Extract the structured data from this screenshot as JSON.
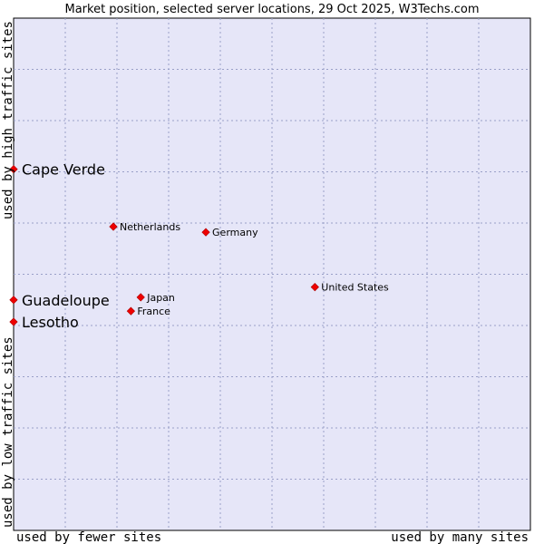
{
  "chart_data": {
    "type": "scatter",
    "title": "Market position, selected server locations, 29 Oct 2025, W3Techs.com",
    "xlabel_left": "used by fewer sites",
    "xlabel_right": "used by many sites",
    "ylabel_bottom": "used by low traffic sites",
    "ylabel_top": "used by high traffic sites",
    "xlim": [
      0,
      100
    ],
    "ylim": [
      0,
      100
    ],
    "grid": true,
    "points": [
      {
        "label": "Cape Verde",
        "x": 0.0,
        "y": 70.5,
        "emphasis": true
      },
      {
        "label": "Netherlands",
        "x": 19.3,
        "y": 59.3,
        "emphasis": false
      },
      {
        "label": "Germany",
        "x": 37.2,
        "y": 58.2,
        "emphasis": false
      },
      {
        "label": "United States",
        "x": 58.3,
        "y": 47.5,
        "emphasis": false
      },
      {
        "label": "Guadeloupe",
        "x": 0.0,
        "y": 45.0,
        "emphasis": true
      },
      {
        "label": "Japan",
        "x": 24.6,
        "y": 45.5,
        "emphasis": false
      },
      {
        "label": "France",
        "x": 22.7,
        "y": 42.8,
        "emphasis": false
      },
      {
        "label": "Lesotho",
        "x": 0.0,
        "y": 40.7,
        "emphasis": true
      }
    ]
  },
  "colors": {
    "plot_bg": "#e6e6f8",
    "point": "#ee0000",
    "grid": "#9aa0c8",
    "border": "#000000"
  }
}
